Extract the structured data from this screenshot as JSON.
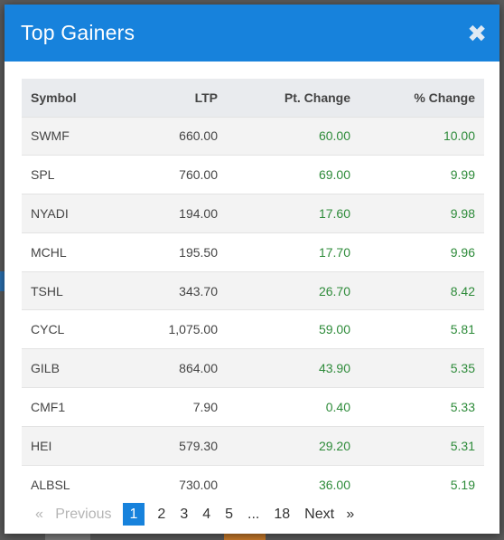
{
  "modal": {
    "title": "Top Gainers",
    "close_glyph": "✖",
    "close_icon": "close-icon"
  },
  "table": {
    "headers": {
      "symbol": "Symbol",
      "ltp": "LTP",
      "pt_change": "Pt. Change",
      "pct_change": "% Change"
    },
    "rows": [
      {
        "symbol": "SWMF",
        "ltp": "660.00",
        "pt_change": "60.00",
        "pct_change": "10.00"
      },
      {
        "symbol": "SPL",
        "ltp": "760.00",
        "pt_change": "69.00",
        "pct_change": "9.99"
      },
      {
        "symbol": "NYADI",
        "ltp": "194.00",
        "pt_change": "17.60",
        "pct_change": "9.98"
      },
      {
        "symbol": "MCHL",
        "ltp": "195.50",
        "pt_change": "17.70",
        "pct_change": "9.96"
      },
      {
        "symbol": "TSHL",
        "ltp": "343.70",
        "pt_change": "26.70",
        "pct_change": "8.42"
      },
      {
        "symbol": "CYCL",
        "ltp": "1,075.00",
        "pt_change": "59.00",
        "pct_change": "5.81"
      },
      {
        "symbol": "GILB",
        "ltp": "864.00",
        "pt_change": "43.90",
        "pct_change": "5.35"
      },
      {
        "symbol": "CMF1",
        "ltp": "7.90",
        "pt_change": "0.40",
        "pct_change": "5.33"
      },
      {
        "symbol": "HEI",
        "ltp": "579.30",
        "pt_change": "29.20",
        "pct_change": "5.31"
      },
      {
        "symbol": "ALBSL",
        "ltp": "730.00",
        "pt_change": "36.00",
        "pct_change": "5.19"
      }
    ]
  },
  "pagination": {
    "prev_glyph": "«",
    "prev_label": "Previous",
    "pages": [
      "1",
      "2",
      "3",
      "4",
      "5"
    ],
    "ellipsis": "...",
    "last_page": "18",
    "next_label": "Next",
    "next_glyph": "»",
    "current_page": "1"
  },
  "colors": {
    "header_bg": "#1782dc",
    "positive": "#2e8b3a"
  }
}
